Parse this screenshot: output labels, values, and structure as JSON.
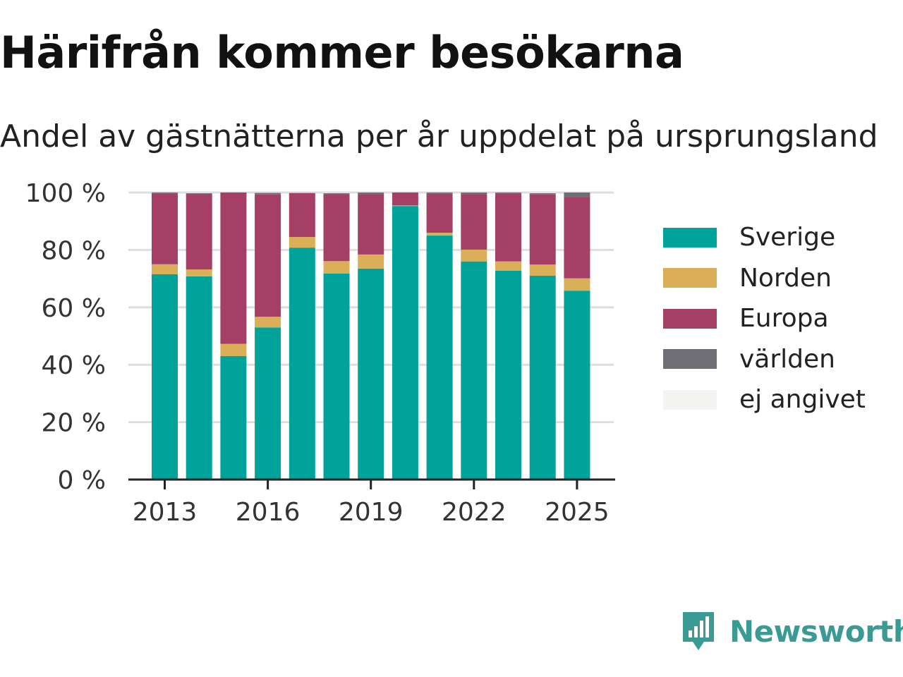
{
  "title": "Härifrån kommer besökarna",
  "subtitle": "Andel av gästnätterna per år uppdelat på ursprungsland",
  "brand": {
    "name": "Newsworthy",
    "icon": "newsworthy-logo-icon",
    "color": "#3a9a94"
  },
  "chart_data": {
    "type": "bar",
    "stacked": true,
    "categories": [
      "2013",
      "2014",
      "2015",
      "2016",
      "2017",
      "2018",
      "2019",
      "2020",
      "2021",
      "2022",
      "2023",
      "2024",
      "2025"
    ],
    "x_tick_labels": [
      "2013",
      "2016",
      "2019",
      "2022",
      "2025"
    ],
    "y_tick_labels": [
      "0 %",
      "20 %",
      "40 %",
      "60 %",
      "80 %",
      "100 %"
    ],
    "ylim": [
      0,
      100
    ],
    "grid": true,
    "legend_position": "right",
    "series": [
      {
        "name": "Sverige",
        "color": "#00a39a",
        "values": [
          71.5,
          70.8,
          43.0,
          53.0,
          80.8,
          71.8,
          73.5,
          95.3,
          85.0,
          76.0,
          72.8,
          71.0,
          65.8
        ]
      },
      {
        "name": "Norden",
        "color": "#dbae58",
        "values": [
          3.5,
          2.4,
          4.3,
          3.7,
          3.7,
          4.3,
          4.9,
          0.2,
          1.0,
          4.1,
          3.2,
          3.9,
          4.3
        ]
      },
      {
        "name": "Europa",
        "color": "#a63f66",
        "values": [
          24.7,
          26.3,
          52.7,
          42.6,
          15.3,
          23.3,
          21.0,
          4.5,
          13.6,
          19.3,
          23.7,
          24.4,
          28.4
        ]
      },
      {
        "name": "världen",
        "color": "#6e6e74",
        "values": [
          0.3,
          0.3,
          0.0,
          0.6,
          0.1,
          0.4,
          0.6,
          0.0,
          0.4,
          0.6,
          0.3,
          0.5,
          1.5
        ]
      },
      {
        "name": "ej angivet",
        "color": "#f4f4f2",
        "values": [
          0.0,
          0.2,
          0.0,
          0.1,
          0.1,
          0.2,
          0.0,
          0.0,
          0.0,
          0.0,
          0.0,
          0.2,
          0.0
        ]
      }
    ]
  }
}
